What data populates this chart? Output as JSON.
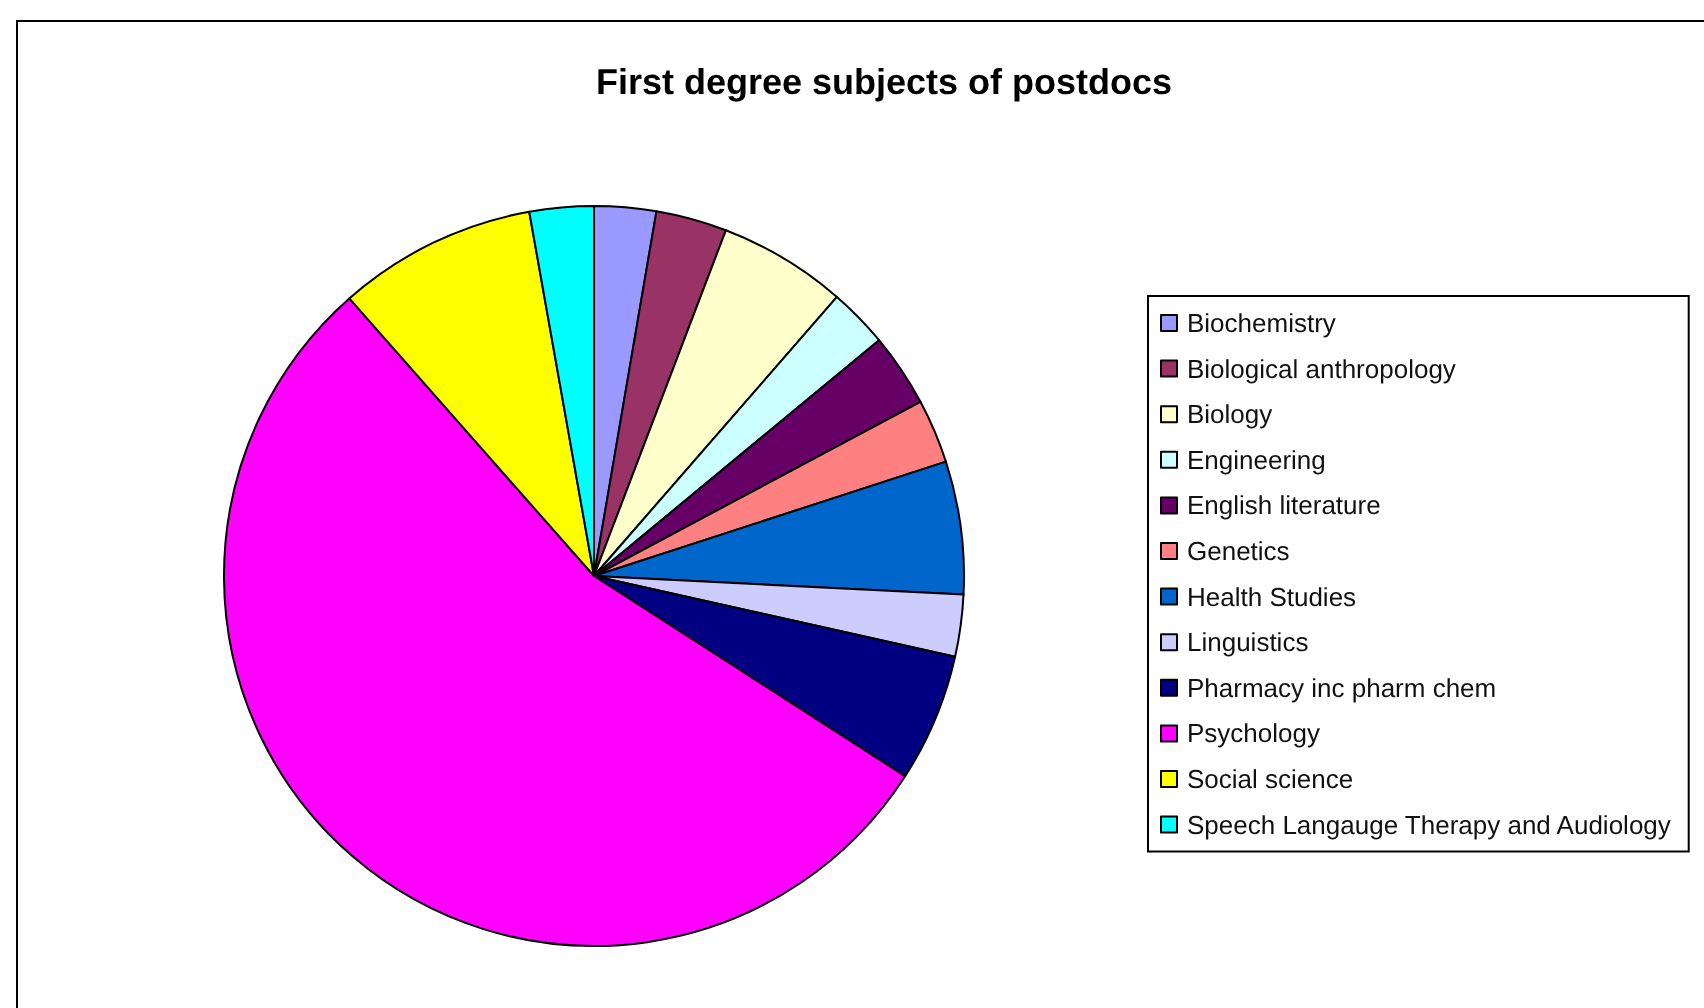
{
  "chart_data": {
    "type": "pie",
    "title": "First degree subjects of postdocs",
    "categories": [
      "Biochemistry",
      "Biological anthropology",
      "Biology",
      "Engineering",
      "English literature",
      "Genetics",
      "Health Studies",
      "Linguistics",
      "Pharmacy inc pharm chem",
      "Psychology",
      "Social science",
      "Speech Langauge Therapy and Audiology"
    ],
    "values": [
      2.7,
      3.1,
      5.6,
      2.6,
      3.2,
      2.8,
      5.8,
      2.7,
      5.6,
      54.4,
      8.7,
      2.8
    ],
    "colors": [
      "#9999ff",
      "#993366",
      "#ffffcc",
      "#ccffff",
      "#660066",
      "#ff8080",
      "#0066cc",
      "#ccccff",
      "#000080",
      "#ff00ff",
      "#ffff00",
      "#00ffff"
    ],
    "legend": "right"
  }
}
